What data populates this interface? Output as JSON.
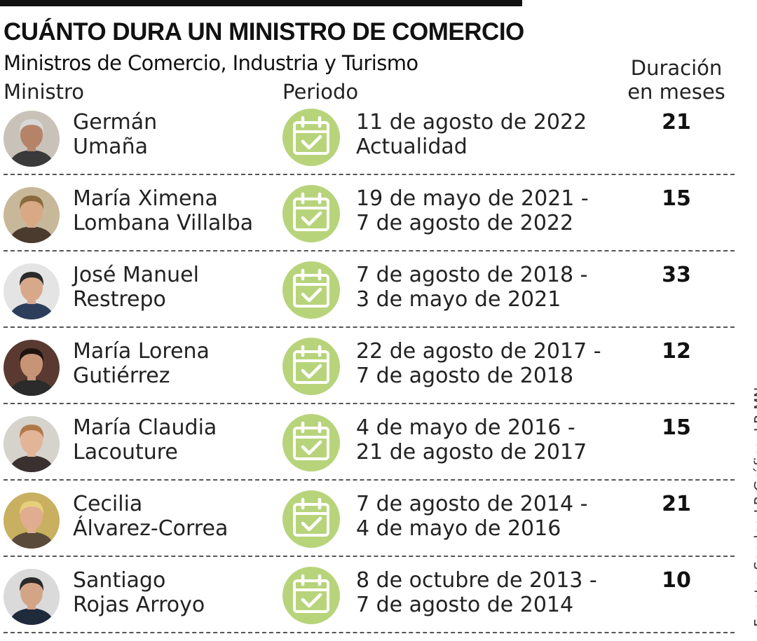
{
  "header": {
    "title": "CUÁNTO DURA UN MINISTRO DE COMERCIO",
    "subtitle": "Ministros de Comercio, Industria y Turismo",
    "col_ministro": "Ministro",
    "col_periodo": "Periodo",
    "col_duracion_1": "Duración",
    "col_duracion_2": "en meses"
  },
  "rows": [
    {
      "name_1": "Germán",
      "name_2": "Umaña",
      "period_1": "11 de agosto de 2022",
      "period_2": "Actualidad",
      "months": "21",
      "photo": {
        "bg": "#c9c2b8",
        "skin": "#b58468",
        "hair": "#d8d8d8",
        "shirt": "#3a3a3a"
      }
    },
    {
      "name_1": "María Ximena",
      "name_2": "Lombana Villalba",
      "period_1": "19 de mayo de 2021 -",
      "period_2": "7 de agosto de 2022",
      "months": "15",
      "photo": {
        "bg": "#c8b89a",
        "skin": "#d9a885",
        "hair": "#8a6a3c",
        "shirt": "#4b3a2e"
      }
    },
    {
      "name_1": "José Manuel",
      "name_2": "Restrepo",
      "period_1": "7 de agosto de 2018 -",
      "period_2": "3 de mayo de 2021",
      "months": "33",
      "photo": {
        "bg": "#e4e4e4",
        "skin": "#d8a88a",
        "hair": "#2a2a2a",
        "shirt": "#2d3e5a"
      }
    },
    {
      "name_1": "María Lorena",
      "name_2": "Gutiérrez",
      "period_1": "22 de agosto de 2017 -",
      "period_2": "7 de agosto de 2018",
      "months": "12",
      "photo": {
        "bg": "#5a3a30",
        "skin": "#c89476",
        "hair": "#1e1410",
        "shirt": "#2b2b2b"
      }
    },
    {
      "name_1": "María Claudia",
      "name_2": "Lacouture",
      "period_1": "4 de mayo de 2016 -",
      "period_2": "21 de agosto de 2017",
      "months": "15",
      "photo": {
        "bg": "#d6d2cc",
        "skin": "#e2b498",
        "hair": "#b07848",
        "shirt": "#3a3030"
      }
    },
    {
      "name_1": "Cecilia",
      "name_2": "Álvarez-Correa",
      "period_1": "7 de agosto de 2014 -",
      "period_2": "4 de mayo de 2016",
      "months": "21",
      "photo": {
        "bg": "#c8b060",
        "skin": "#e0ad90",
        "hair": "#e6cf7a",
        "shirt": "#5a4a3a"
      }
    },
    {
      "name_1": "Santiago",
      "name_2": "Rojas Arroyo",
      "period_1": "8 de octubre de 2013 -",
      "period_2": "7 de agosto de 2014",
      "months": "10",
      "photo": {
        "bg": "#dadada",
        "skin": "#d4a486",
        "hair": "#2a2a2a",
        "shirt": "#1f2a3a"
      }
    }
  ],
  "calendar_icon": "calendar-check-icon",
  "colors": {
    "calendar_bg": "#b7d47b",
    "calendar_fg": "#ffffff"
  },
  "source": "Fuente: Sondeo LR    Gráfico: LR-MN"
}
